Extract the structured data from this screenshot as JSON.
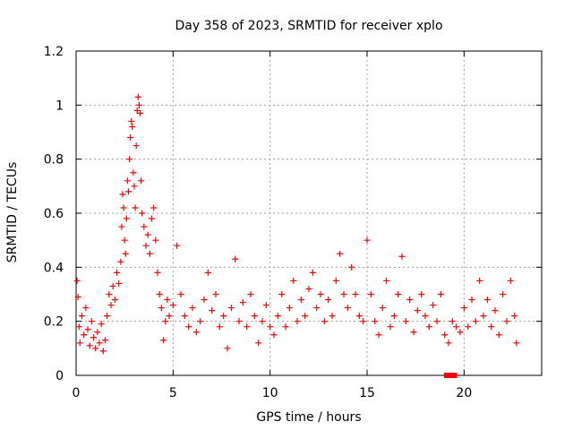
{
  "chart_data": {
    "type": "scatter",
    "title": "Day 358 of 2023, SRMTID for receiver xplo",
    "xlabel": "GPS time / hours",
    "ylabel": "SRMTID / TECUs",
    "xlim": [
      0,
      24
    ],
    "ylim": [
      0,
      1.2
    ],
    "x_ticks": [
      0,
      5,
      10,
      15,
      20
    ],
    "x_tick_labels": [
      "0",
      "5",
      "10",
      "15",
      "20"
    ],
    "y_ticks": [
      0,
      0.2,
      0.4,
      0.6,
      0.8,
      1.0,
      1.2
    ],
    "y_tick_labels": [
      "0",
      "0.2",
      "0.4",
      "0.6",
      "0.8",
      "1",
      "1.2"
    ],
    "grid": true,
    "marker": "+",
    "color": "#ff0000",
    "series": [
      {
        "name": "SRMTID",
        "x_range": [
          0,
          22.8
        ],
        "points": [
          [
            0.05,
            0.35
          ],
          [
            0.1,
            0.29
          ],
          [
            0.15,
            0.18
          ],
          [
            0.2,
            0.12
          ],
          [
            0.3,
            0.22
          ],
          [
            0.4,
            0.15
          ],
          [
            0.5,
            0.25
          ],
          [
            0.6,
            0.17
          ],
          [
            0.7,
            0.11
          ],
          [
            0.8,
            0.2
          ],
          [
            0.9,
            0.14
          ],
          [
            1.0,
            0.1
          ],
          [
            1.1,
            0.16
          ],
          [
            1.2,
            0.12
          ],
          [
            1.3,
            0.19
          ],
          [
            1.4,
            0.09
          ],
          [
            1.5,
            0.13
          ],
          [
            1.6,
            0.22
          ],
          [
            1.7,
            0.3
          ],
          [
            1.8,
            0.26
          ],
          [
            1.9,
            0.33
          ],
          [
            2.0,
            0.28
          ],
          [
            2.1,
            0.38
          ],
          [
            2.2,
            0.34
          ],
          [
            2.3,
            0.42
          ],
          [
            2.35,
            0.55
          ],
          [
            2.4,
            0.67
          ],
          [
            2.45,
            0.62
          ],
          [
            2.5,
            0.5
          ],
          [
            2.55,
            0.45
          ],
          [
            2.6,
            0.58
          ],
          [
            2.65,
            0.72
          ],
          [
            2.7,
            0.68
          ],
          [
            2.75,
            0.8
          ],
          [
            2.8,
            0.88
          ],
          [
            2.85,
            0.94
          ],
          [
            2.9,
            0.92
          ],
          [
            2.95,
            0.75
          ],
          [
            3.0,
            0.7
          ],
          [
            3.05,
            0.62
          ],
          [
            3.1,
            0.85
          ],
          [
            3.15,
            0.98
          ],
          [
            3.2,
            1.03
          ],
          [
            3.25,
            1.0
          ],
          [
            3.3,
            0.97
          ],
          [
            3.35,
            0.72
          ],
          [
            3.4,
            0.6
          ],
          [
            3.5,
            0.55
          ],
          [
            3.6,
            0.48
          ],
          [
            3.7,
            0.52
          ],
          [
            3.8,
            0.45
          ],
          [
            3.9,
            0.58
          ],
          [
            4.0,
            0.62
          ],
          [
            4.1,
            0.5
          ],
          [
            4.2,
            0.38
          ],
          [
            4.3,
            0.3
          ],
          [
            4.4,
            0.25
          ],
          [
            4.5,
            0.13
          ],
          [
            4.6,
            0.2
          ],
          [
            4.7,
            0.28
          ],
          [
            4.8,
            0.22
          ],
          [
            5.0,
            0.26
          ],
          [
            5.2,
            0.48
          ],
          [
            5.4,
            0.3
          ],
          [
            5.6,
            0.22
          ],
          [
            5.8,
            0.18
          ],
          [
            6.0,
            0.25
          ],
          [
            6.2,
            0.16
          ],
          [
            6.4,
            0.2
          ],
          [
            6.6,
            0.28
          ],
          [
            6.8,
            0.38
          ],
          [
            7.0,
            0.24
          ],
          [
            7.2,
            0.3
          ],
          [
            7.4,
            0.18
          ],
          [
            7.6,
            0.22
          ],
          [
            7.8,
            0.1
          ],
          [
            8.0,
            0.25
          ],
          [
            8.2,
            0.43
          ],
          [
            8.4,
            0.2
          ],
          [
            8.6,
            0.27
          ],
          [
            8.8,
            0.18
          ],
          [
            9.0,
            0.3
          ],
          [
            9.2,
            0.22
          ],
          [
            9.4,
            0.12
          ],
          [
            9.6,
            0.2
          ],
          [
            9.8,
            0.26
          ],
          [
            10.0,
            0.18
          ],
          [
            10.2,
            0.15
          ],
          [
            10.4,
            0.22
          ],
          [
            10.6,
            0.3
          ],
          [
            10.8,
            0.18
          ],
          [
            11.0,
            0.25
          ],
          [
            11.2,
            0.35
          ],
          [
            11.4,
            0.2
          ],
          [
            11.6,
            0.28
          ],
          [
            11.8,
            0.22
          ],
          [
            12.0,
            0.32
          ],
          [
            12.2,
            0.38
          ],
          [
            12.4,
            0.25
          ],
          [
            12.6,
            0.3
          ],
          [
            12.8,
            0.2
          ],
          [
            13.0,
            0.28
          ],
          [
            13.2,
            0.22
          ],
          [
            13.4,
            0.35
          ],
          [
            13.6,
            0.45
          ],
          [
            13.8,
            0.3
          ],
          [
            14.0,
            0.25
          ],
          [
            14.2,
            0.4
          ],
          [
            14.4,
            0.3
          ],
          [
            14.6,
            0.22
          ],
          [
            14.8,
            0.2
          ],
          [
            15.0,
            0.5
          ],
          [
            15.2,
            0.3
          ],
          [
            15.4,
            0.2
          ],
          [
            15.6,
            0.15
          ],
          [
            15.8,
            0.25
          ],
          [
            16.0,
            0.35
          ],
          [
            16.2,
            0.18
          ],
          [
            16.4,
            0.22
          ],
          [
            16.6,
            0.3
          ],
          [
            16.8,
            0.44
          ],
          [
            17.0,
            0.2
          ],
          [
            17.2,
            0.28
          ],
          [
            17.4,
            0.16
          ],
          [
            17.6,
            0.24
          ],
          [
            17.8,
            0.3
          ],
          [
            18.0,
            0.22
          ],
          [
            18.2,
            0.18
          ],
          [
            18.4,
            0.26
          ],
          [
            18.6,
            0.2
          ],
          [
            18.8,
            0.3
          ],
          [
            19.0,
            0.15
          ],
          [
            19.2,
            0.12
          ],
          [
            19.4,
            0.2
          ],
          [
            19.6,
            0.18
          ],
          [
            19.8,
            0.16
          ],
          [
            20.0,
            0.25
          ],
          [
            20.2,
            0.18
          ],
          [
            20.4,
            0.28
          ],
          [
            20.6,
            0.2
          ],
          [
            20.8,
            0.35
          ],
          [
            21.0,
            0.22
          ],
          [
            21.2,
            0.28
          ],
          [
            21.4,
            0.18
          ],
          [
            21.6,
            0.24
          ],
          [
            21.8,
            0.15
          ],
          [
            22.0,
            0.3
          ],
          [
            22.2,
            0.2
          ],
          [
            22.4,
            0.35
          ],
          [
            22.6,
            0.22
          ],
          [
            22.7,
            0.12
          ]
        ]
      },
      {
        "name": "zero-value markers",
        "marker": "square",
        "points": [
          [
            19.1,
            0.0
          ],
          [
            19.3,
            0.0
          ],
          [
            19.5,
            0.0
          ]
        ]
      }
    ]
  }
}
